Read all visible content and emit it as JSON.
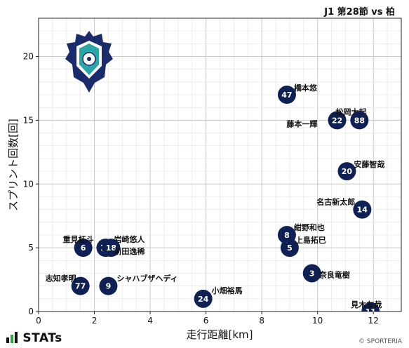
{
  "header": {
    "title": "J1 第28節 vs 柏"
  },
  "footer": {
    "brand": "STATs",
    "copyright": "© SPORTERIA"
  },
  "logo": {
    "name": "club-crest-icon",
    "colors": [
      "#1a2b6b",
      "#ffffff",
      "#2aa6a6"
    ]
  },
  "colors": {
    "marker": "#0f2154",
    "marker_text": "#ffffff",
    "grid": "#c8c8c8",
    "minor_grid": "#e6e6e6"
  },
  "chart_data": {
    "type": "scatter",
    "title": "",
    "xlabel": "走行距離[km]",
    "ylabel": "スプリント回数[回]",
    "xlim": [
      0,
      13
    ],
    "ylim": [
      0,
      23
    ],
    "xticks": [
      0,
      2,
      4,
      6,
      8,
      10,
      12
    ],
    "yticks": [
      0,
      5,
      10,
      15,
      20
    ],
    "grid": true,
    "points": [
      {
        "number": "47",
        "name": "橋本悠",
        "x": 8.9,
        "y": 17
      },
      {
        "number": "22",
        "name": "松岡大起",
        "x": 10.7,
        "y": 15
      },
      {
        "number": "88",
        "name": "藤本一輝",
        "x": 11.5,
        "y": 15
      },
      {
        "number": "20",
        "name": "安藤智哉",
        "x": 11.05,
        "y": 11
      },
      {
        "number": "14",
        "name": "名古新太郎",
        "x": 11.6,
        "y": 8
      },
      {
        "number": "8",
        "name": "紺野和也",
        "x": 8.9,
        "y": 6
      },
      {
        "number": "5",
        "name": "上島拓巳",
        "x": 9.0,
        "y": 5
      },
      {
        "number": "3",
        "name": "奈良竜樹",
        "x": 9.8,
        "y": 3
      },
      {
        "number": "6",
        "name": "重見柾斗",
        "x": 1.6,
        "y": 5
      },
      {
        "number": "16",
        "name": "岩崎悠人",
        "x": 2.4,
        "y": 5
      },
      {
        "number": "18",
        "name": "前田逸稀",
        "x": 2.6,
        "y": 5
      },
      {
        "number": "77",
        "name": "志知孝明",
        "x": 1.5,
        "y": 2
      },
      {
        "number": "9",
        "name": "シャハブザヘディ",
        "x": 2.5,
        "y": 2
      },
      {
        "number": "24",
        "name": "小畑裕馬",
        "x": 5.9,
        "y": 1
      },
      {
        "number": "11",
        "name": "見木友哉",
        "x": 11.9,
        "y": 0
      }
    ]
  }
}
